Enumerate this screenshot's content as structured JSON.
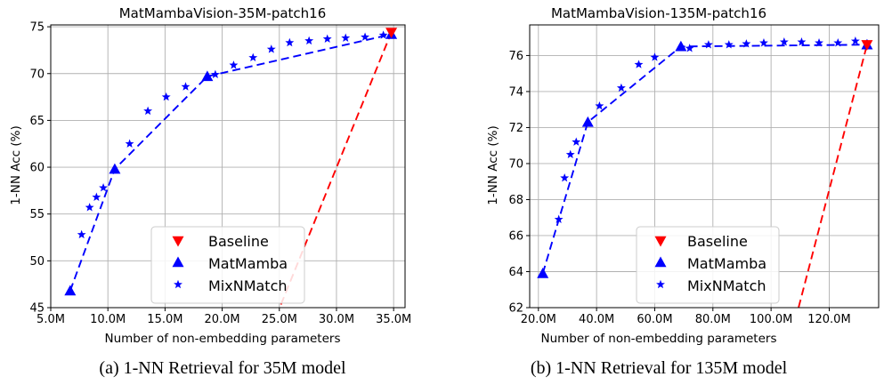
{
  "chart_data": [
    {
      "type": "line",
      "title": "MatMambaVision-35M-patch16",
      "caption": "(a) 1-NN Retrieval for 35M model",
      "xlabel": "Number of non-embedding parameters",
      "ylabel": "1-NN Acc (%)",
      "xlim": [
        5.0,
        36.0
      ],
      "ylim": [
        45,
        75.2
      ],
      "xticks": [
        5,
        10,
        15,
        20,
        25,
        30,
        35
      ],
      "xtick_labels": [
        "5.0M",
        "10.0M",
        "15.0M",
        "20.0M",
        "25.0M",
        "30.0M",
        "35.0M"
      ],
      "yticks": [
        45,
        50,
        55,
        60,
        65,
        70,
        75
      ],
      "ytick_labels": [
        "45",
        "50",
        "55",
        "60",
        "65",
        "70",
        "75"
      ],
      "grid": true,
      "legend_position": "bottom-center",
      "series": [
        {
          "name": "Baseline",
          "marker": "triangle-down",
          "color": "#ff0000",
          "line": "dashed",
          "x": [
            23.5,
            34.8
          ],
          "y": [
            40.4,
            74.4
          ]
        },
        {
          "name": "MatMamba",
          "marker": "triangle-up",
          "color": "#0000ff",
          "line": "dashed",
          "x": [
            6.7,
            10.6,
            18.7,
            34.8
          ],
          "y": [
            46.8,
            59.8,
            69.7,
            74.2
          ]
        },
        {
          "name": "MixNMatch",
          "marker": "star",
          "color": "#0000ff",
          "line": "none",
          "x": [
            7.7,
            8.4,
            9.0,
            9.6,
            11.9,
            13.5,
            15.1,
            16.8,
            19.4,
            21.0,
            22.7,
            24.3,
            25.9,
            27.6,
            29.2,
            30.8,
            32.5,
            34.1
          ],
          "y": [
            52.8,
            55.7,
            56.8,
            57.8,
            62.5,
            66.0,
            67.5,
            68.6,
            69.9,
            70.9,
            71.7,
            72.6,
            73.3,
            73.5,
            73.7,
            73.8,
            73.9,
            74.1
          ]
        }
      ]
    },
    {
      "type": "line",
      "title": "MatMambaVision-135M-patch16",
      "caption": "(b) 1-NN Retrieval for 135M model",
      "xlabel": "Number of non-embedding parameters",
      "ylabel": "1-NN Acc (%)",
      "xlim": [
        17.0,
        137.0
      ],
      "ylim": [
        62,
        77.7
      ],
      "xticks": [
        20,
        40,
        60,
        80,
        100,
        120
      ],
      "xtick_labels": [
        "20.0M",
        "40.0M",
        "60.0M",
        "80.0M",
        "100.0M",
        "120.0M"
      ],
      "yticks": [
        62,
        64,
        66,
        68,
        70,
        72,
        74,
        76
      ],
      "ytick_labels": [
        "62",
        "64",
        "66",
        "68",
        "70",
        "72",
        "74",
        "76"
      ],
      "grid": true,
      "legend_position": "bottom-center",
      "series": [
        {
          "name": "Baseline",
          "marker": "triangle-down",
          "color": "#ff0000",
          "line": "dashed",
          "x": [
            103.0,
            133.0
          ],
          "y": [
            58.0,
            76.6
          ]
        },
        {
          "name": "MatMamba",
          "marker": "triangle-up",
          "color": "#0000ff",
          "line": "dashed",
          "x": [
            21.5,
            37.0,
            69.0,
            133.0
          ],
          "y": [
            63.9,
            72.3,
            76.5,
            76.6
          ]
        },
        {
          "name": "MixNMatch",
          "marker": "star",
          "color": "#0000ff",
          "line": "none",
          "x": [
            27.0,
            29.0,
            31.0,
            33.0,
            41.0,
            48.5,
            54.5,
            60.0,
            72.0,
            78.5,
            85.5,
            91.5,
            97.5,
            104.5,
            110.5,
            116.5,
            123.0,
            129.0
          ],
          "y": [
            66.9,
            69.2,
            70.5,
            71.2,
            73.2,
            74.2,
            75.5,
            75.9,
            76.4,
            76.6,
            76.6,
            76.65,
            76.7,
            76.75,
            76.75,
            76.7,
            76.7,
            76.8
          ]
        }
      ]
    }
  ]
}
